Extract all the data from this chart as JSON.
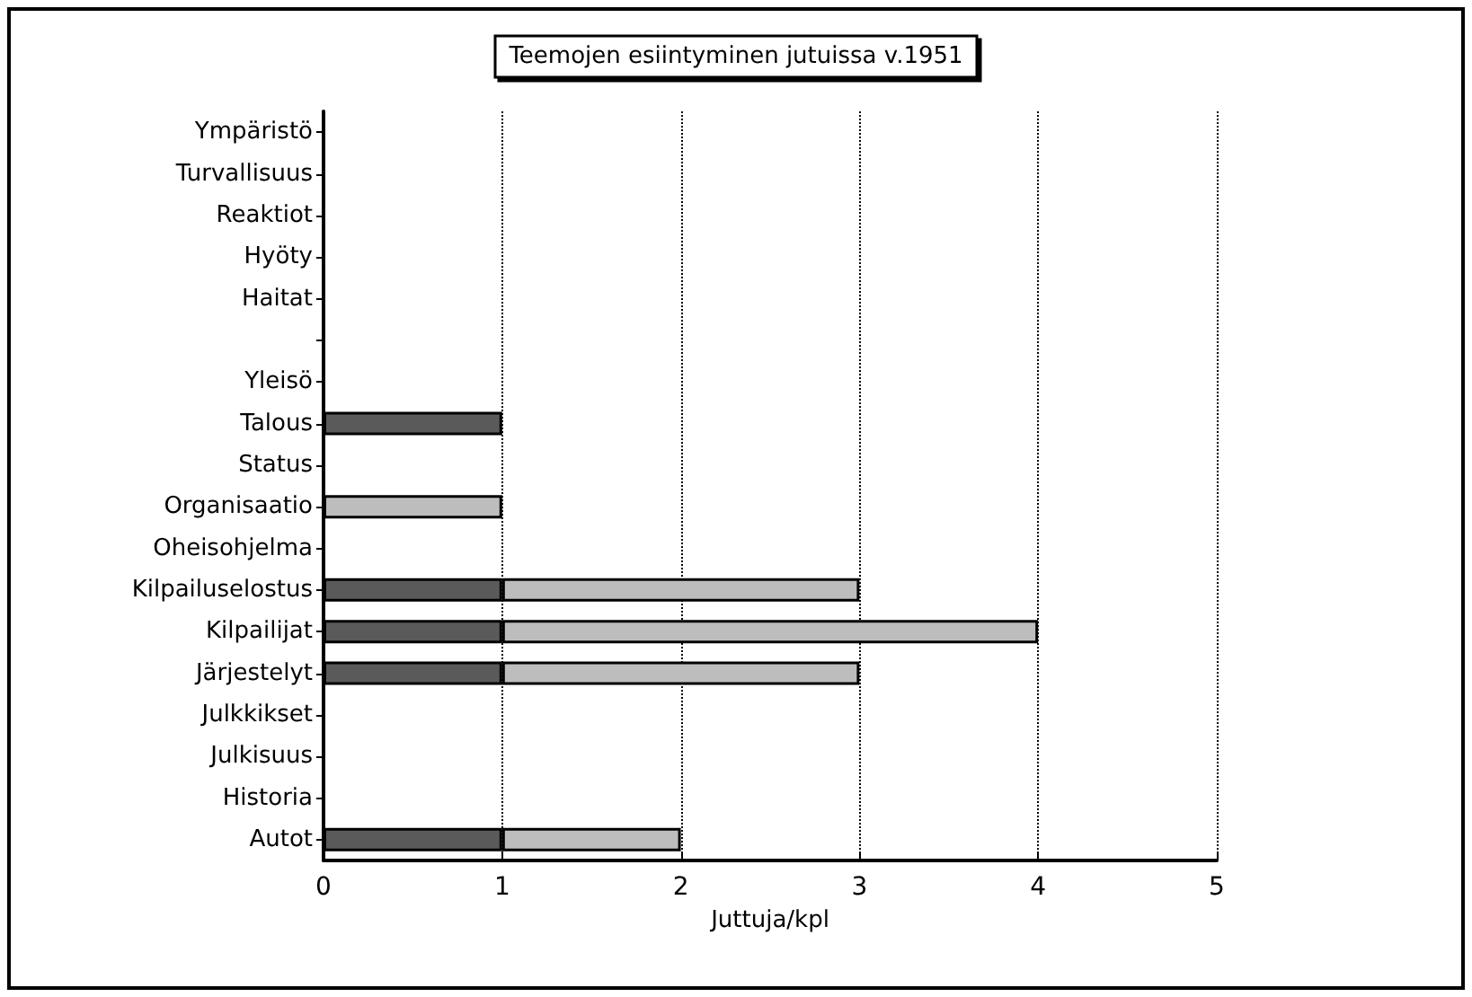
{
  "chart_data": {
    "type": "bar",
    "title": "Teemojen esiintyminen jutuissa v.1951",
    "xlabel": "Juttuja/kpl",
    "orientation": "horizontal",
    "stacked": true,
    "grid": "x",
    "categories": [
      "Ympäristö",
      "Turvallisuus",
      "Reaktiot",
      "Hyöty",
      "Haitat",
      null,
      "Yleisö",
      "Talous",
      "Status",
      "Organisaatio",
      "Oheisohjelma",
      "Kilpailuselostus",
      "Kilpailijat",
      "Järjestelyt",
      "Julkkikset",
      "Julkisuus",
      "Historia",
      "Autot"
    ],
    "series": [
      {
        "color": "#000000",
        "values": [
          0,
          0,
          0,
          0,
          0,
          0,
          0,
          0,
          0,
          0,
          0,
          0,
          0,
          0,
          0,
          0,
          0,
          0
        ]
      },
      {
        "color": "#5a5a5a",
        "values": [
          0,
          0,
          0,
          0,
          0,
          0,
          0,
          1,
          0,
          0,
          0,
          1,
          1,
          1,
          0,
          0,
          0,
          1
        ]
      },
      {
        "color": "#bdbdbd",
        "values": [
          0,
          0,
          0,
          0,
          0,
          0,
          0,
          0,
          0,
          1,
          0,
          2,
          3,
          2,
          0,
          0,
          0,
          1
        ]
      }
    ],
    "xlim": [
      0,
      5
    ],
    "xticks": [
      0,
      1,
      2,
      3,
      4,
      5
    ]
  }
}
